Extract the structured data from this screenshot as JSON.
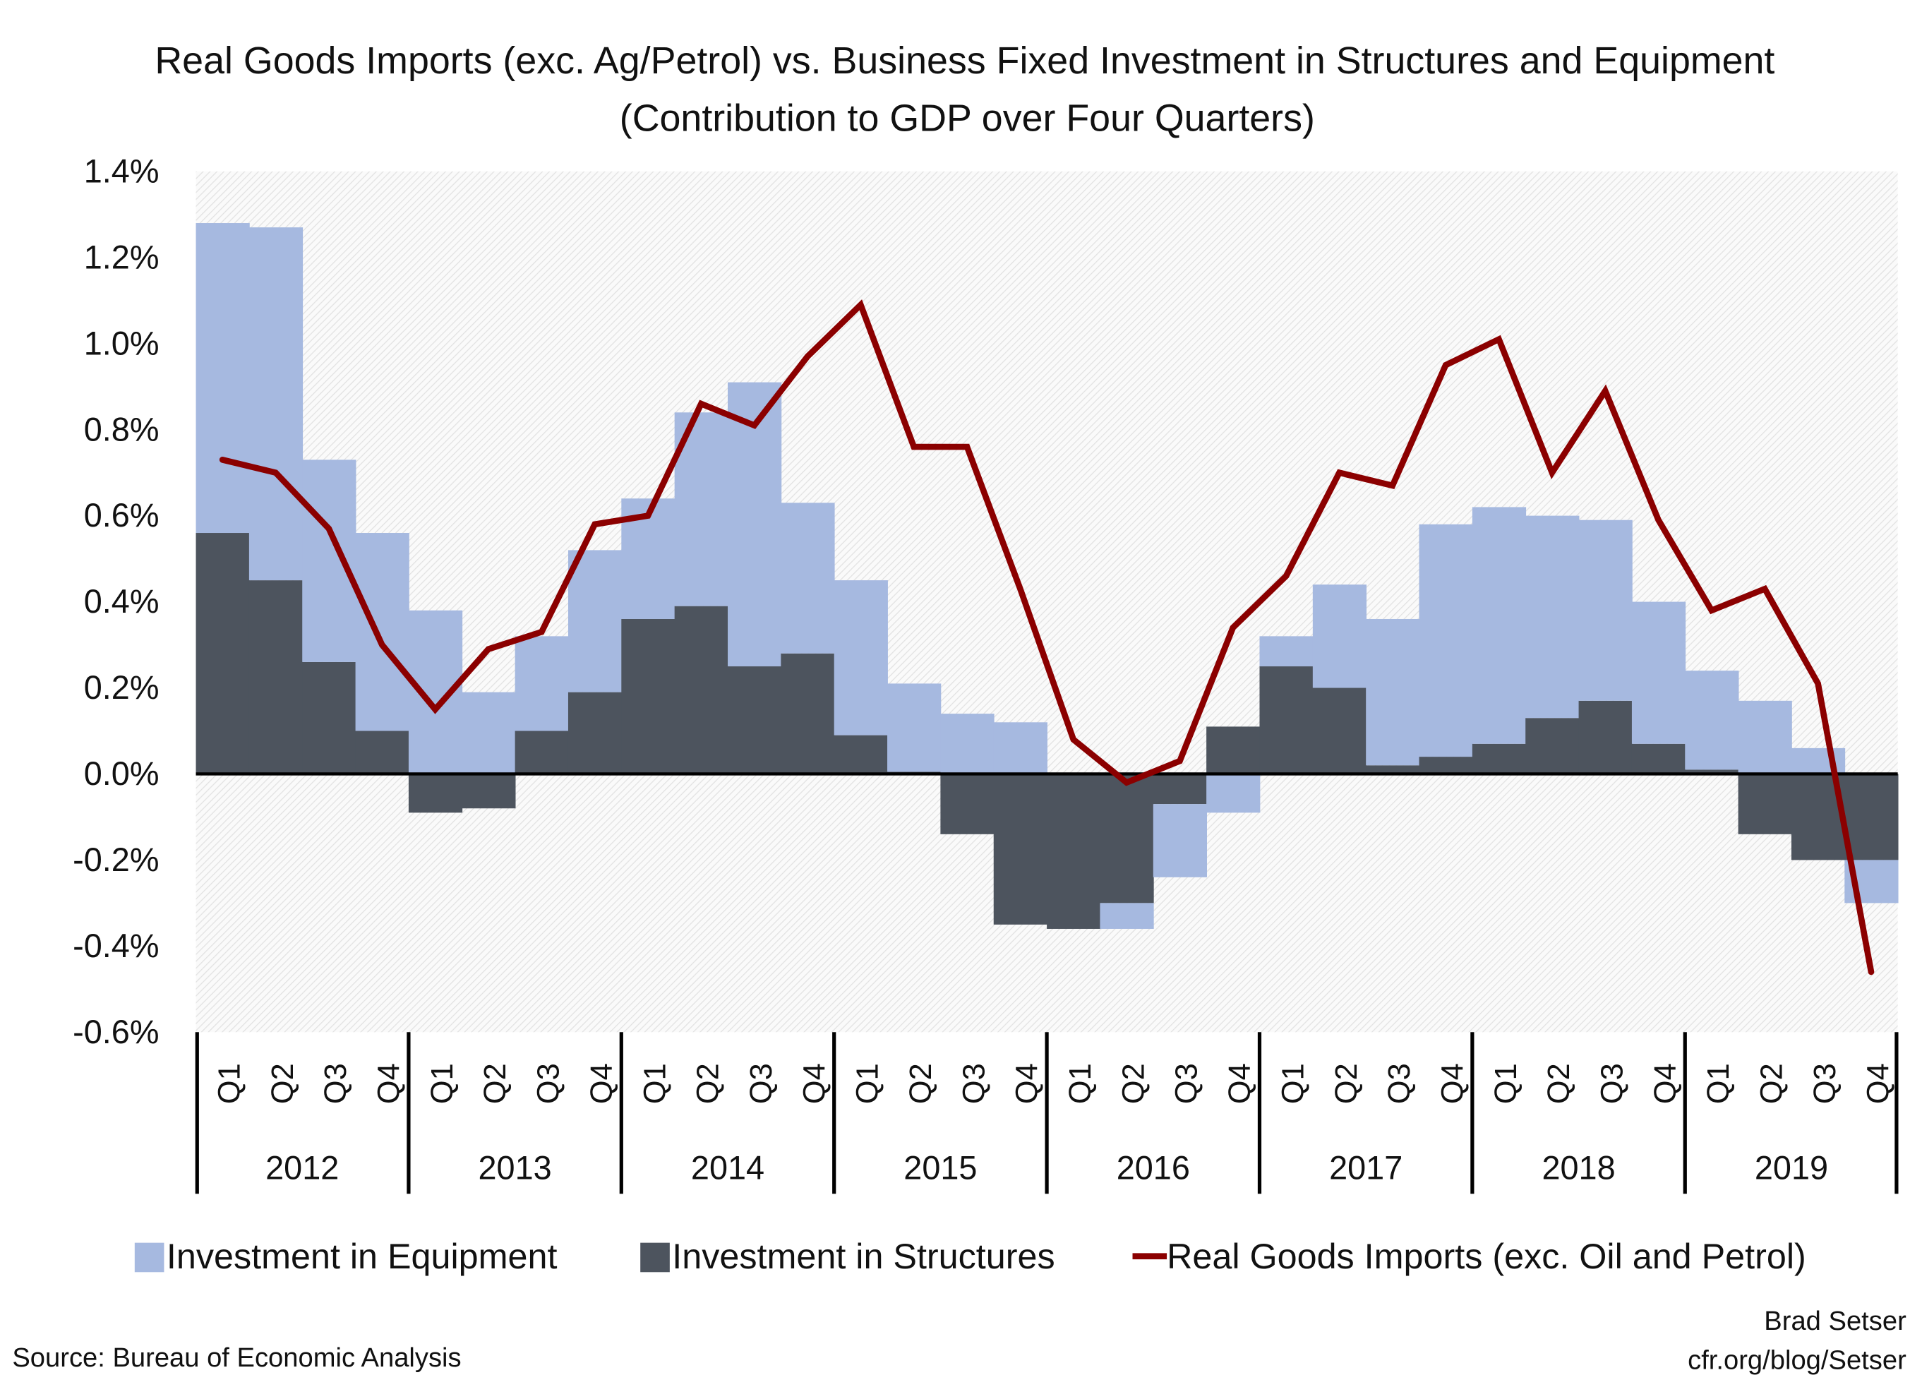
{
  "chart_data": {
    "type": "bar",
    "stacked": true,
    "title": "Real Goods Imports (exc. Ag/Petrol) vs. Business Fixed Investment in Structures and Equipment",
    "subtitle": "(Contribution to GDP over Four Quarters)",
    "xlabel": "",
    "ylabel": "",
    "ylim": [
      -0.6,
      1.4
    ],
    "yticks": [
      "1.4%",
      "1.2%",
      "1.0%",
      "0.8%",
      "0.6%",
      "0.4%",
      "0.2%",
      "0.0%",
      "-0.2%",
      "-0.4%",
      "-0.6%"
    ],
    "ytick_values": [
      1.4,
      1.2,
      1.0,
      0.8,
      0.6,
      0.4,
      0.2,
      0.0,
      -0.2,
      -0.4,
      -0.6
    ],
    "years": [
      "2012",
      "2013",
      "2014",
      "2015",
      "2016",
      "2017",
      "2018",
      "2019"
    ],
    "quarters": [
      "Q1",
      "Q2",
      "Q3",
      "Q4"
    ],
    "grid": false,
    "legend_position": "bottom",
    "series": [
      {
        "name": "Investment in Structures",
        "kind": "bar",
        "color": "#4d545e",
        "values": [
          0.56,
          0.45,
          0.26,
          0.1,
          -0.09,
          -0.08,
          0.1,
          0.19,
          0.36,
          0.39,
          0.25,
          0.28,
          0.09,
          0.005,
          -0.14,
          -0.35,
          -0.36,
          -0.3,
          -0.07,
          0.11,
          0.25,
          0.2,
          0.02,
          0.04,
          0.07,
          0.13,
          0.17,
          0.07,
          0.01,
          -0.14,
          -0.2,
          -0.2
        ]
      },
      {
        "name": "Investment in Equipment",
        "kind": "bar",
        "color": "#a6b9e0",
        "values": [
          0.72,
          0.82,
          0.47,
          0.46,
          0.38,
          0.19,
          0.22,
          0.33,
          0.28,
          0.45,
          0.66,
          0.35,
          0.36,
          0.205,
          0.14,
          0.12,
          0.0,
          -0.06,
          -0.17,
          -0.09,
          0.07,
          0.24,
          0.34,
          0.54,
          0.55,
          0.47,
          0.42,
          0.33,
          0.23,
          0.17,
          0.06,
          -0.1
        ]
      },
      {
        "name": "Real Goods Imports (exc. Oil and Petrol)",
        "kind": "line",
        "color": "#8b0000",
        "values": [
          0.73,
          0.7,
          0.57,
          0.3,
          0.15,
          0.29,
          0.33,
          0.58,
          0.6,
          0.86,
          0.81,
          0.97,
          1.09,
          0.76,
          0.76,
          0.43,
          0.08,
          -0.02,
          0.03,
          0.34,
          0.46,
          0.7,
          0.67,
          0.95,
          1.01,
          0.7,
          0.89,
          0.59,
          0.38,
          0.43,
          0.21,
          -0.46
        ]
      }
    ]
  },
  "legend": {
    "equipment": "Investment in Equipment",
    "structures": "Investment in Structures",
    "imports": "Real Goods Imports (exc. Oil and Petrol)"
  },
  "footer": {
    "source": "Source: Bureau of Economic Analysis",
    "author": "Brad Setser",
    "site": "cfr.org/blog/Setser"
  }
}
